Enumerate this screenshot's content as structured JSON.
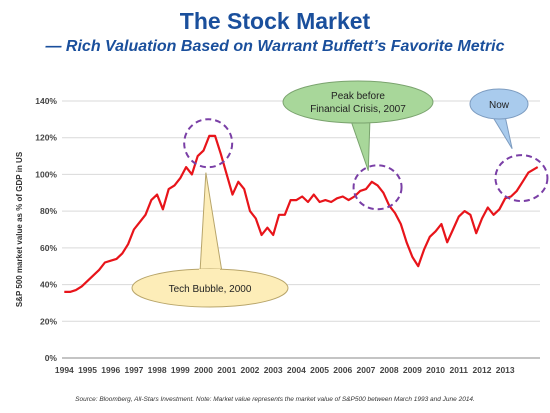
{
  "title": "The Stock Market",
  "subtitle": "— Rich Valuation Based on Warrant Buffett’s Favorite Metric",
  "source": "Source: Bloomberg, All-Stars Investment. Note: Market value represents the market value of S&P500 between March 1993 and June 2014.",
  "colors": {
    "line": "#e8141a",
    "callout_green": "#a8d79a",
    "callout_yellow": "#fdedb8",
    "callout_blue": "#a9cbed",
    "highlight_circle": "#7a3fa6",
    "title": "#1a4f9c"
  },
  "callouts": {
    "tech_bubble": "Tech Bubble, 2000",
    "peak_line1": "Peak before",
    "peak_line2": "Financial Crisis, 2007",
    "now": "Now"
  },
  "chart_data": {
    "type": "line",
    "title": "The Stock Market",
    "ylabel": "S&P 500 market value as % of GDP in US",
    "xlabel": "",
    "ylim": [
      0,
      140
    ],
    "yticks": [
      0,
      20,
      40,
      60,
      80,
      100,
      120,
      140
    ],
    "ytick_labels": [
      "0%",
      "20%",
      "40%",
      "60%",
      "80%",
      "100%",
      "120%",
      "140%"
    ],
    "xlim": [
      1993.9,
      2014.5
    ],
    "xticks": [
      "1994",
      "1995",
      "1996",
      "1997",
      "1998",
      "1999",
      "2000",
      "2001",
      "2002",
      "2003",
      "2004",
      "2005",
      "2006",
      "2007",
      "2008",
      "2009",
      "2010",
      "2011",
      "2012",
      "2013"
    ],
    "grid": "horizontal",
    "series": [
      {
        "x": [
          1994.0,
          1994.25,
          1994.5,
          1994.75,
          1995.0,
          1995.25,
          1995.5,
          1995.75,
          1996.0,
          1996.25,
          1996.5,
          1996.75,
          1997.0,
          1997.25,
          1997.5,
          1997.75,
          1998.0,
          1998.25,
          1998.5,
          1998.75,
          1999.0,
          1999.25,
          1999.5,
          1999.75,
          2000.0,
          2000.25,
          2000.5,
          2000.75,
          2001.0,
          2001.25,
          2001.5,
          2001.75,
          2002.0,
          2002.25,
          2002.5,
          2002.75,
          2003.0,
          2003.25,
          2003.5,
          2003.75,
          2004.0,
          2004.25,
          2004.5,
          2004.75,
          2005.0,
          2005.25,
          2005.5,
          2005.75,
          2006.0,
          2006.25,
          2006.5,
          2006.75,
          2007.0,
          2007.25,
          2007.5,
          2007.75,
          2008.0,
          2008.25,
          2008.5,
          2008.75,
          2009.0,
          2009.25,
          2009.5,
          2009.75,
          2010.0,
          2010.25,
          2010.5,
          2010.75,
          2011.0,
          2011.25,
          2011.5,
          2011.75,
          2012.0,
          2012.25,
          2012.5,
          2012.75,
          2013.0,
          2013.25,
          2013.5,
          2013.75,
          2014.0,
          2014.4
        ],
        "values": [
          36,
          36,
          37,
          39,
          42,
          45,
          48,
          52,
          53,
          54,
          57,
          62,
          70,
          74,
          78,
          86,
          89,
          81,
          92,
          94,
          98,
          104,
          100,
          110,
          113,
          121,
          121,
          111,
          100,
          89,
          96,
          92,
          80,
          76,
          67,
          71,
          67,
          78,
          78,
          86,
          86,
          88,
          85,
          89,
          85,
          86,
          85,
          87,
          88,
          86,
          88,
          91,
          92,
          96,
          94,
          90,
          83,
          79,
          73,
          63,
          55,
          50,
          59,
          66,
          69,
          73,
          63,
          70,
          77,
          80,
          78,
          68,
          76,
          82,
          78,
          81,
          87,
          88,
          91,
          96,
          101,
          104
        ]
      }
    ]
  }
}
